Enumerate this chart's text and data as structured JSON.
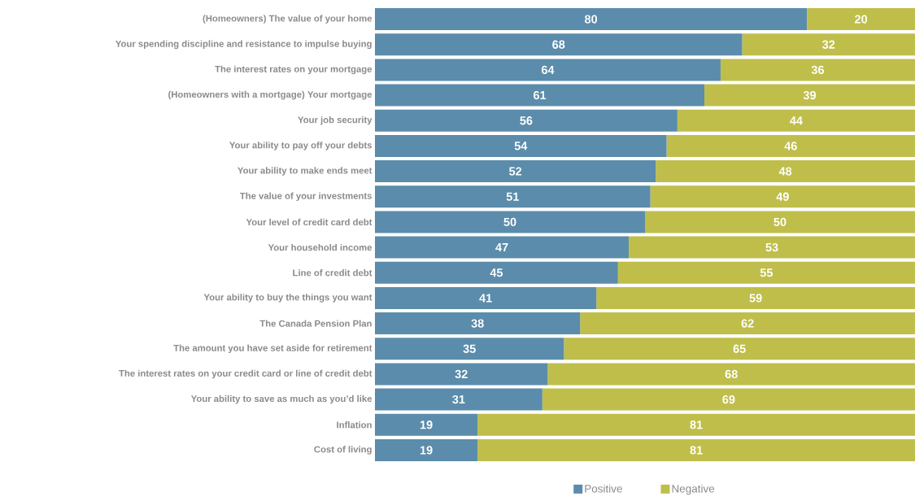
{
  "chart_data": {
    "type": "bar",
    "orientation": "horizontal",
    "stacked": true,
    "data_labels": true,
    "legend": "bottom",
    "xlim": [
      0,
      100
    ],
    "categories": [
      "(Homeowners) The value of your home",
      "Your spending discipline and resistance to impulse buying",
      "The interest rates on your mortgage",
      "(Homeowners with a mortgage) Your mortgage",
      "Your job security",
      "Your ability to pay off your debts",
      "Your ability to make ends meet",
      "The value of your investments",
      "Your level of credit card debt",
      "Your household income",
      "Line of credit debt",
      "Your ability to buy the things you want",
      "The Canada Pension Plan",
      "The amount you have set aside for retirement",
      "The interest rates on your credit card or line of credit debt",
      "Your ability to save as much as you’d like",
      "Inflation",
      "Cost of living"
    ],
    "series": [
      {
        "name": "Positive",
        "color": "#5b8cab",
        "values": [
          80,
          68,
          64,
          61,
          56,
          54,
          52,
          51,
          50,
          47,
          45,
          41,
          38,
          35,
          32,
          31,
          19,
          19
        ]
      },
      {
        "name": "Negative",
        "color": "#bfbe4b",
        "values": [
          20,
          32,
          36,
          39,
          44,
          46,
          48,
          49,
          50,
          53,
          55,
          59,
          62,
          65,
          68,
          69,
          81,
          81
        ]
      }
    ]
  }
}
